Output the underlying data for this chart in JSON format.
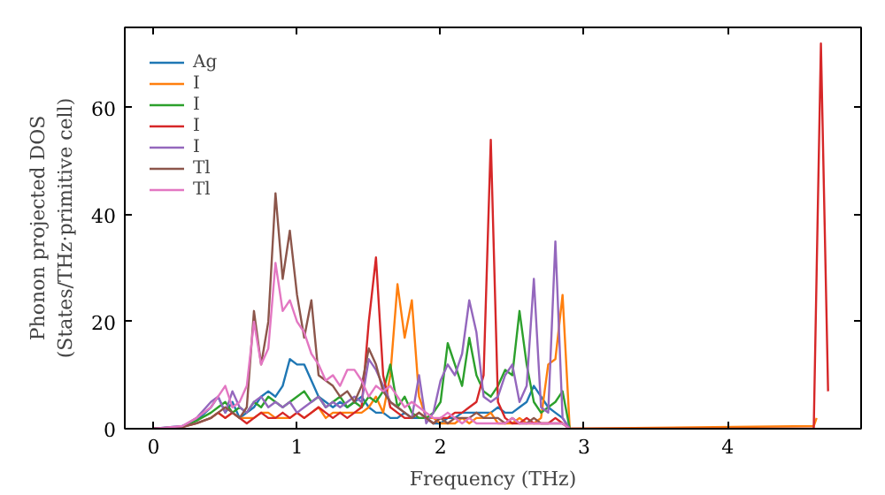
{
  "chart_data": {
    "type": "line",
    "xlabel": "Frequency (THz)",
    "ylabel": "Phonon projected DOS\n(States/THz·primitive cell)",
    "x": [
      0,
      0.2,
      0.3,
      0.4,
      0.45,
      0.5,
      0.55,
      0.6,
      0.65,
      0.7,
      0.75,
      0.8,
      0.85,
      0.9,
      0.95,
      1.0,
      1.05,
      1.1,
      1.15,
      1.2,
      1.25,
      1.3,
      1.35,
      1.4,
      1.45,
      1.5,
      1.55,
      1.6,
      1.65,
      1.7,
      1.75,
      1.8,
      1.85,
      1.9,
      1.95,
      2.0,
      2.05,
      2.1,
      2.15,
      2.2,
      2.25,
      2.3,
      2.35,
      2.4,
      2.45,
      2.5,
      2.55,
      2.6,
      2.65,
      2.7,
      2.75,
      2.8,
      2.85,
      2.9,
      4.6,
      4.62,
      4.65,
      4.7
    ],
    "series": [
      {
        "name": "Ag",
        "color": "#1f77b4",
        "values": [
          0,
          0.5,
          1.5,
          4,
          6,
          3,
          5,
          2,
          3,
          4,
          6,
          7,
          6,
          8,
          13,
          12,
          12,
          9,
          6,
          5,
          4,
          5,
          4,
          5,
          6,
          4,
          3,
          3,
          2,
          2,
          3,
          2,
          2,
          2,
          1,
          1,
          2,
          2,
          3,
          3,
          3,
          3,
          3,
          4,
          3,
          3,
          4,
          5,
          8,
          6,
          4,
          3,
          2,
          0,
          null,
          null,
          null,
          null
        ]
      },
      {
        "name": "I",
        "color": "#ff7f0e",
        "values": [
          null,
          null,
          null,
          2,
          3,
          2,
          3,
          2,
          2,
          2,
          3,
          3,
          2,
          2,
          2,
          3,
          2,
          3,
          4,
          2,
          3,
          3,
          3,
          3,
          3,
          4,
          6,
          3,
          10,
          27,
          17,
          24,
          6,
          2,
          2,
          1,
          1,
          1,
          2,
          1,
          2,
          2,
          3,
          1,
          1,
          1,
          2,
          1,
          1,
          2,
          12,
          13,
          25,
          0,
          0.5,
          2,
          null,
          null
        ]
      },
      {
        "name": "I",
        "color": "#2ca02c",
        "values": [
          0,
          0.4,
          1.5,
          3,
          4,
          5,
          3,
          4,
          3,
          5,
          4,
          6,
          5,
          4,
          5,
          6,
          7,
          5,
          6,
          4,
          5,
          6,
          4,
          5,
          4,
          6,
          5,
          7,
          12,
          4,
          6,
          3,
          2,
          2,
          3,
          5,
          16,
          12,
          8,
          17,
          10,
          7,
          6,
          8,
          11,
          10,
          22,
          12,
          5,
          3,
          4,
          5,
          7,
          0,
          null,
          null,
          null,
          null
        ]
      },
      {
        "name": "I",
        "color": "#d62728",
        "values": [
          0,
          0.3,
          1,
          2,
          3,
          2,
          3,
          2,
          1,
          2,
          3,
          2,
          2,
          3,
          2,
          3,
          2,
          3,
          4,
          3,
          2,
          3,
          2,
          3,
          4,
          20,
          32,
          10,
          4,
          3,
          2,
          2,
          3,
          2,
          1,
          2,
          2,
          3,
          3,
          4,
          5,
          10,
          54,
          5,
          2,
          1,
          1,
          2,
          1,
          1,
          1,
          2,
          1,
          0,
          0,
          29,
          72,
          7
        ]
      },
      {
        "name": "I",
        "color": "#9467bd",
        "values": [
          0,
          0.4,
          2,
          5,
          6,
          3,
          7,
          4,
          3,
          5,
          6,
          4,
          5,
          4,
          5,
          3,
          4,
          5,
          6,
          4,
          5,
          4,
          5,
          6,
          5,
          13,
          11,
          8,
          5,
          4,
          3,
          2,
          10,
          1,
          3,
          9,
          12,
          10,
          14,
          24,
          18,
          6,
          5,
          6,
          10,
          12,
          5,
          8,
          28,
          4,
          3,
          35,
          2,
          0,
          null,
          null,
          null,
          null
        ]
      },
      {
        "name": "Tl",
        "color": "#8c564b",
        "values": [
          0,
          0.3,
          1,
          2,
          3,
          4,
          3,
          2,
          4,
          22,
          12,
          20,
          44,
          28,
          37,
          25,
          17,
          24,
          10,
          9,
          8,
          6,
          7,
          5,
          8,
          15,
          12,
          7,
          5,
          4,
          3,
          2,
          3,
          2,
          1,
          2,
          1,
          2,
          2,
          2,
          3,
          2,
          2,
          2,
          1,
          2,
          1,
          1,
          2,
          1,
          1,
          1,
          1,
          0,
          null,
          null,
          null,
          null
        ]
      },
      {
        "name": "Tl",
        "color": "#e377c2",
        "values": [
          0,
          0.5,
          2,
          4,
          6,
          8,
          4,
          5,
          8,
          20,
          12,
          15,
          31,
          22,
          24,
          20,
          18,
          14,
          12,
          9,
          10,
          8,
          11,
          11,
          9,
          6,
          8,
          7,
          8,
          6,
          4,
          5,
          4,
          3,
          2,
          2,
          3,
          2,
          1,
          2,
          1,
          1,
          1,
          1,
          1,
          2,
          1,
          1,
          1,
          1,
          1,
          1,
          1,
          0,
          null,
          null,
          null,
          null
        ]
      }
    ],
    "xlim": [
      -0.2,
      4.93
    ],
    "ylim": [
      0,
      75
    ],
    "xticks": [
      0,
      1,
      2,
      3,
      4
    ],
    "yticks": [
      0,
      20,
      40,
      60
    ],
    "grid": false,
    "legend": "top left"
  }
}
